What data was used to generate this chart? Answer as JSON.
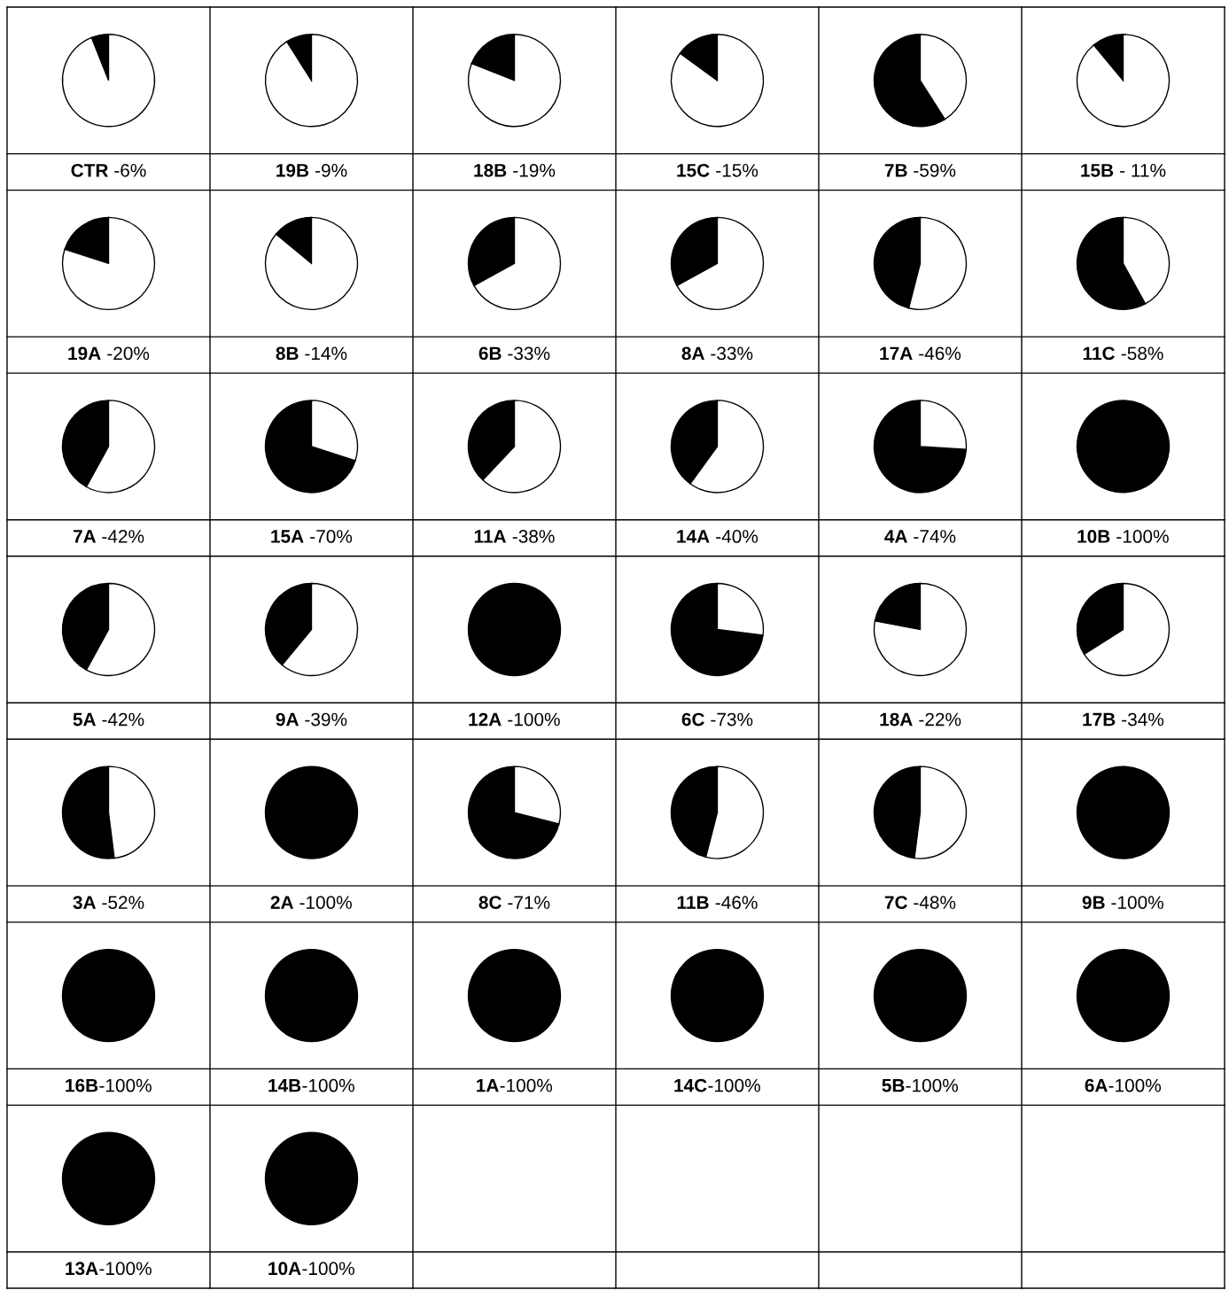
{
  "chart_data": [
    {
      "type": "pie",
      "title": "CTR",
      "subtitle": " -6%",
      "categories": [
        null,
        null
      ],
      "values": [
        6,
        94
      ],
      "colors": [
        "#000000",
        "#ffffff"
      ]
    },
    {
      "type": "pie",
      "title": "19B",
      "subtitle": " -9%",
      "categories": [
        null,
        null
      ],
      "values": [
        9,
        91
      ],
      "colors": [
        "#000000",
        "#ffffff"
      ]
    },
    {
      "type": "pie",
      "title": "18B",
      "subtitle": " -19%",
      "categories": [
        null,
        null
      ],
      "values": [
        19,
        81
      ],
      "colors": [
        "#000000",
        "#ffffff"
      ]
    },
    {
      "type": "pie",
      "title": "15C",
      "subtitle": " -15%",
      "categories": [
        null,
        null
      ],
      "values": [
        15,
        85
      ],
      "colors": [
        "#000000",
        "#ffffff"
      ]
    },
    {
      "type": "pie",
      "title": "7B",
      "subtitle": " -59%",
      "categories": [
        null,
        null
      ],
      "values": [
        59,
        41
      ],
      "colors": [
        "#000000",
        "#ffffff"
      ]
    },
    {
      "type": "pie",
      "title": "15B",
      "subtitle": " - 11%",
      "categories": [
        null,
        null
      ],
      "values": [
        11,
        89
      ],
      "colors": [
        "#000000",
        "#ffffff"
      ]
    },
    {
      "type": "pie",
      "title": "19A",
      "subtitle": " -20%",
      "categories": [
        null,
        null
      ],
      "values": [
        20,
        80
      ],
      "colors": [
        "#000000",
        "#ffffff"
      ]
    },
    {
      "type": "pie",
      "title": "8B",
      "subtitle": " -14%",
      "categories": [
        null,
        null
      ],
      "values": [
        14,
        86
      ],
      "colors": [
        "#000000",
        "#ffffff"
      ]
    },
    {
      "type": "pie",
      "title": "6B",
      "subtitle": " -33%",
      "categories": [
        null,
        null
      ],
      "values": [
        33,
        67
      ],
      "colors": [
        "#000000",
        "#ffffff"
      ]
    },
    {
      "type": "pie",
      "title": "8A",
      "subtitle": " -33%",
      "categories": [
        null,
        null
      ],
      "values": [
        33,
        67
      ],
      "colors": [
        "#000000",
        "#ffffff"
      ]
    },
    {
      "type": "pie",
      "title": "17A",
      "subtitle": " -46%",
      "categories": [
        null,
        null
      ],
      "values": [
        46,
        54
      ],
      "colors": [
        "#000000",
        "#ffffff"
      ]
    },
    {
      "type": "pie",
      "title": "11C",
      "subtitle": " -58%",
      "categories": [
        null,
        null
      ],
      "values": [
        58,
        42
      ],
      "colors": [
        "#000000",
        "#ffffff"
      ]
    },
    {
      "type": "pie",
      "title": "7A",
      "subtitle": " -42%",
      "categories": [
        null,
        null
      ],
      "values": [
        42,
        58
      ],
      "colors": [
        "#000000",
        "#ffffff"
      ]
    },
    {
      "type": "pie",
      "title": "15A",
      "subtitle": " -70%",
      "categories": [
        null,
        null
      ],
      "values": [
        70,
        30
      ],
      "colors": [
        "#000000",
        "#ffffff"
      ]
    },
    {
      "type": "pie",
      "title": "11A",
      "subtitle": " -38%",
      "categories": [
        null,
        null
      ],
      "values": [
        38,
        62
      ],
      "colors": [
        "#000000",
        "#ffffff"
      ]
    },
    {
      "type": "pie",
      "title": "14A",
      "subtitle": " -40%",
      "categories": [
        null,
        null
      ],
      "values": [
        40,
        60
      ],
      "colors": [
        "#000000",
        "#ffffff"
      ]
    },
    {
      "type": "pie",
      "title": "4A",
      "subtitle": " -74%",
      "categories": [
        null,
        null
      ],
      "values": [
        74,
        26
      ],
      "colors": [
        "#000000",
        "#ffffff"
      ]
    },
    {
      "type": "pie",
      "title": "10B",
      "subtitle": " -100%",
      "categories": [
        null,
        null
      ],
      "values": [
        100,
        0
      ],
      "colors": [
        "#000000",
        "#ffffff"
      ]
    },
    {
      "type": "pie",
      "title": "5A",
      "subtitle": " -42%",
      "categories": [
        null,
        null
      ],
      "values": [
        42,
        58
      ],
      "colors": [
        "#000000",
        "#ffffff"
      ]
    },
    {
      "type": "pie",
      "title": "9A",
      "subtitle": " -39%",
      "categories": [
        null,
        null
      ],
      "values": [
        39,
        61
      ],
      "colors": [
        "#000000",
        "#ffffff"
      ]
    },
    {
      "type": "pie",
      "title": "12A",
      "subtitle": " -100%",
      "categories": [
        null,
        null
      ],
      "values": [
        100,
        0
      ],
      "colors": [
        "#000000",
        "#ffffff"
      ]
    },
    {
      "type": "pie",
      "title": "6C",
      "subtitle": " -73%",
      "categories": [
        null,
        null
      ],
      "values": [
        73,
        27
      ],
      "colors": [
        "#000000",
        "#ffffff"
      ]
    },
    {
      "type": "pie",
      "title": "18A",
      "subtitle": " -22%",
      "categories": [
        null,
        null
      ],
      "values": [
        22,
        78
      ],
      "colors": [
        "#000000",
        "#ffffff"
      ]
    },
    {
      "type": "pie",
      "title": "17B",
      "subtitle": " -34%",
      "categories": [
        null,
        null
      ],
      "values": [
        34,
        66
      ],
      "colors": [
        "#000000",
        "#ffffff"
      ]
    },
    {
      "type": "pie",
      "title": "3A",
      "subtitle": " -52%",
      "categories": [
        null,
        null
      ],
      "values": [
        52,
        48
      ],
      "colors": [
        "#000000",
        "#ffffff"
      ]
    },
    {
      "type": "pie",
      "title": "2A",
      "subtitle": " -100%",
      "categories": [
        null,
        null
      ],
      "values": [
        100,
        0
      ],
      "colors": [
        "#000000",
        "#ffffff"
      ]
    },
    {
      "type": "pie",
      "title": "8C",
      "subtitle": " -71%",
      "categories": [
        null,
        null
      ],
      "values": [
        71,
        29
      ],
      "colors": [
        "#000000",
        "#ffffff"
      ]
    },
    {
      "type": "pie",
      "title": "11B",
      "subtitle": " -46%",
      "categories": [
        null,
        null
      ],
      "values": [
        46,
        54
      ],
      "colors": [
        "#000000",
        "#ffffff"
      ]
    },
    {
      "type": "pie",
      "title": "7C",
      "subtitle": " -48%",
      "categories": [
        null,
        null
      ],
      "values": [
        48,
        52
      ],
      "colors": [
        "#000000",
        "#ffffff"
      ]
    },
    {
      "type": "pie",
      "title": "9B",
      "subtitle": " -100%",
      "categories": [
        null,
        null
      ],
      "values": [
        100,
        0
      ],
      "colors": [
        "#000000",
        "#ffffff"
      ]
    },
    {
      "type": "pie",
      "title": "16B",
      "subtitle": "-100%",
      "categories": [
        null,
        null
      ],
      "values": [
        100,
        0
      ],
      "colors": [
        "#000000",
        "#ffffff"
      ]
    },
    {
      "type": "pie",
      "title": "14B",
      "subtitle": "-100%",
      "categories": [
        null,
        null
      ],
      "values": [
        100,
        0
      ],
      "colors": [
        "#000000",
        "#ffffff"
      ]
    },
    {
      "type": "pie",
      "title": "1A",
      "subtitle": "-100%",
      "categories": [
        null,
        null
      ],
      "values": [
        100,
        0
      ],
      "colors": [
        "#000000",
        "#ffffff"
      ]
    },
    {
      "type": "pie",
      "title": "14C",
      "subtitle": "-100%",
      "categories": [
        null,
        null
      ],
      "values": [
        100,
        0
      ],
      "colors": [
        "#000000",
        "#ffffff"
      ]
    },
    {
      "type": "pie",
      "title": "5B",
      "subtitle": "-100%",
      "categories": [
        null,
        null
      ],
      "values": [
        100,
        0
      ],
      "colors": [
        "#000000",
        "#ffffff"
      ]
    },
    {
      "type": "pie",
      "title": "6A",
      "subtitle": "-100%",
      "categories": [
        null,
        null
      ],
      "values": [
        100,
        0
      ],
      "colors": [
        "#000000",
        "#ffffff"
      ]
    },
    {
      "type": "pie",
      "title": "13A",
      "subtitle": "-100%",
      "categories": [
        null,
        null
      ],
      "values": [
        100,
        0
      ],
      "colors": [
        "#000000",
        "#ffffff"
      ]
    },
    {
      "type": "pie",
      "title": "10A",
      "subtitle": "-100%",
      "categories": [
        null,
        null
      ],
      "values": [
        100,
        0
      ],
      "colors": [
        "#000000",
        "#ffffff"
      ]
    }
  ]
}
